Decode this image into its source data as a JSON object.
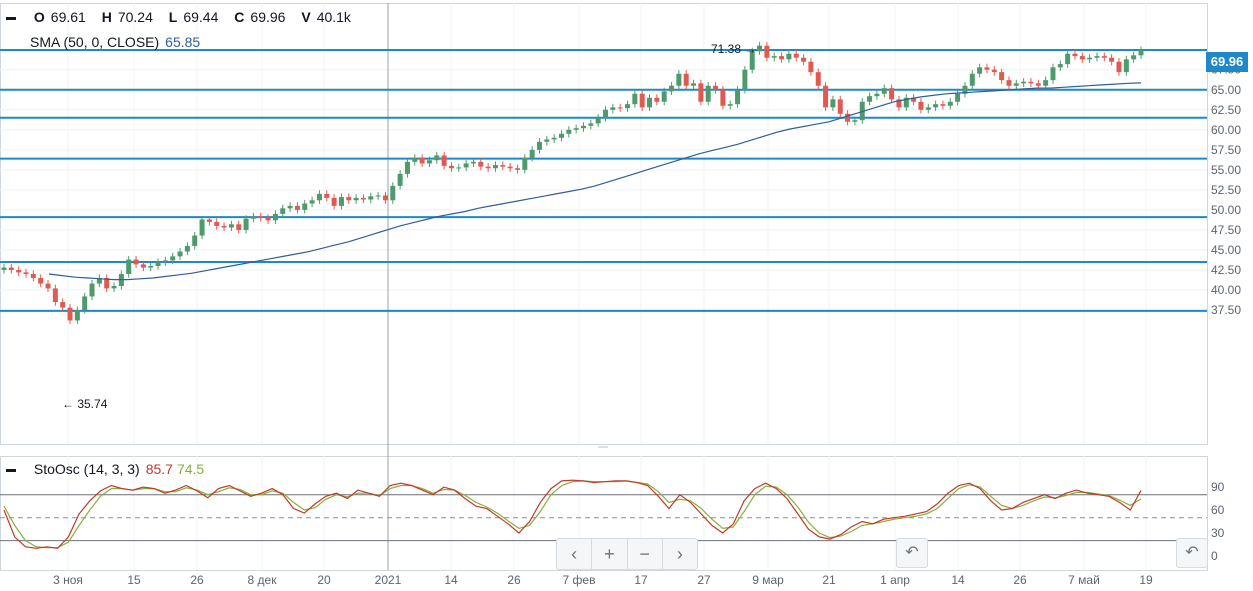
{
  "ohlc": {
    "o_label": "O",
    "o": "69.61",
    "h_label": "H",
    "h": "70.24",
    "l_label": "L",
    "l": "69.44",
    "c_label": "C",
    "c": "69.96",
    "v_label": "V",
    "v": "40.1k"
  },
  "sma_legend": {
    "label": "SMA (50, 0, CLOSE)",
    "value": "65.85"
  },
  "sto_legend": {
    "label": "StoOsc (14, 3, 3)",
    "k": "85.7",
    "d": "74.5"
  },
  "last_price_tag": "69.96",
  "annotations": {
    "high": "71.38",
    "low": "35.74"
  },
  "zoom_controls": {
    "left": "‹",
    "plus": "+",
    "minus": "−",
    "right": "›"
  },
  "reset_icon": "↶",
  "colors": {
    "up": "#4f9a6c",
    "down": "#e05a52",
    "sma": "#2f5f97",
    "hline": "#1e88c8",
    "sto_k": "#c0392b",
    "sto_d": "#8aae3c"
  },
  "chart_data": [
    {
      "type": "candlestick",
      "title": "",
      "ylim": [
        33,
        73
      ],
      "ytick_labels": [
        "37.50",
        "40.00",
        "42.50",
        "45.00",
        "47.50",
        "50.00",
        "52.50",
        "55.00",
        "57.50",
        "60.00",
        "62.50",
        "65.00",
        "67.50"
      ],
      "x_tick_labels": [
        "3 ноя",
        "15",
        "26",
        "8 дек",
        "20",
        "2021",
        "14",
        "26",
        "7 фев",
        "17",
        "27",
        "9 мар",
        "21",
        "1 апр",
        "14",
        "26",
        "7 май",
        "19"
      ],
      "horizontal_levels": [
        69.96,
        65.0,
        61.5,
        56.4,
        49.1,
        43.5,
        37.4
      ],
      "high_marker": 71.38,
      "low_marker": 35.74,
      "closes": [
        42.8,
        42.5,
        42.2,
        42.0,
        41.5,
        40.8,
        40.2,
        38.5,
        37.8,
        36.2,
        37.5,
        39.2,
        40.8,
        41.5,
        40.2,
        40.5,
        42.0,
        43.8,
        43.2,
        42.8,
        43.0,
        43.5,
        43.7,
        44.2,
        44.8,
        45.5,
        46.8,
        48.8,
        48.5,
        48.0,
        47.8,
        48.2,
        47.5,
        48.9,
        49.2,
        49.0,
        48.7,
        49.5,
        50.2,
        50.5,
        50.0,
        50.8,
        51.2,
        52.0,
        51.5,
        50.5,
        51.6,
        51.2,
        51.5,
        51.3,
        51.7,
        51.8,
        51.2,
        53.0,
        54.5,
        56.0,
        56.5,
        55.8,
        56.2,
        56.8,
        55.5,
        55.2,
        55.3,
        55.8,
        56.0,
        55.4,
        55.2,
        55.6,
        55.4,
        55.2,
        55.0,
        56.5,
        57.5,
        58.5,
        58.8,
        59.0,
        59.5,
        60.0,
        60.2,
        60.5,
        60.8,
        61.5,
        62.5,
        62.8,
        62.7,
        63.2,
        64.5,
        62.8,
        64.0,
        63.5,
        64.8,
        65.5,
        67.0,
        65.5,
        65.8,
        63.5,
        65.5,
        65.0,
        63.0,
        63.2,
        65.0,
        67.5,
        69.8,
        70.5,
        69.0,
        69.2,
        68.8,
        69.5,
        69.0,
        68.5,
        67.2,
        65.5,
        62.8,
        63.8,
        62.0,
        61.0,
        61.2,
        63.5,
        64.2,
        64.5,
        65.2,
        63.8,
        62.8,
        64.0,
        63.5,
        62.5,
        62.8,
        63.2,
        63.0,
        63.5,
        64.5,
        65.5,
        67.0,
        67.8,
        67.5,
        67.2,
        66.2,
        65.5,
        65.8,
        66.0,
        65.8,
        65.5,
        66.2,
        67.8,
        68.2,
        69.5,
        69.2,
        68.8,
        69.0,
        69.2,
        69.0,
        68.5,
        67.2,
        68.8,
        69.3,
        69.96
      ],
      "sma_50": [
        42.0,
        41.8,
        41.6,
        41.5,
        41.4,
        41.3,
        41.3,
        41.4,
        41.5,
        41.7,
        41.9,
        42.1,
        42.4,
        42.7,
        43.0,
        43.3,
        43.6,
        43.9,
        44.2,
        44.5,
        44.8,
        45.2,
        45.6,
        46.0,
        46.5,
        47.0,
        47.5,
        48.0,
        48.4,
        48.8,
        49.2,
        49.5,
        49.8,
        50.2,
        50.5,
        50.8,
        51.1,
        51.4,
        51.7,
        52.0,
        52.3,
        52.6,
        53.0,
        53.5,
        54.0,
        54.5,
        55.0,
        55.5,
        56.0,
        56.5,
        57.0,
        57.4,
        57.8,
        58.2,
        58.7,
        59.2,
        59.7,
        60.1,
        60.4,
        60.7,
        61.0,
        61.5,
        62.0,
        62.5,
        63.0,
        63.5,
        63.8,
        64.1,
        64.3,
        64.5,
        64.6,
        64.7,
        64.8,
        64.9,
        65.0,
        65.1,
        65.2,
        65.2,
        65.3,
        65.4,
        65.5,
        65.6,
        65.7,
        65.8,
        65.85
      ],
      "sto_k": [
        60,
        25,
        12,
        10,
        12,
        10,
        25,
        55,
        72,
        85,
        92,
        88,
        86,
        90,
        88,
        82,
        86,
        92,
        85,
        76,
        88,
        92,
        85,
        78,
        82,
        88,
        80,
        62,
        56,
        68,
        78,
        82,
        75,
        86,
        82,
        78,
        92,
        95,
        92,
        86,
        80,
        90,
        86,
        75,
        65,
        62,
        52,
        42,
        30,
        45,
        70,
        88,
        98,
        99,
        98,
        96,
        97,
        98,
        98,
        96,
        92,
        78,
        62,
        80,
        70,
        55,
        40,
        30,
        42,
        72,
        88,
        95,
        88,
        75,
        55,
        35,
        25,
        22,
        28,
        38,
        45,
        42,
        48,
        50,
        52,
        55,
        58,
        68,
        82,
        92,
        95,
        88,
        72,
        60,
        62,
        70,
        75,
        80,
        75,
        82,
        86,
        82,
        80,
        78,
        70,
        60,
        85.7
      ],
      "sto_d": [
        65,
        40,
        20,
        12,
        11,
        11,
        18,
        40,
        60,
        78,
        88,
        88,
        86,
        88,
        88,
        84,
        84,
        89,
        86,
        80,
        84,
        89,
        87,
        80,
        80,
        85,
        82,
        70,
        60,
        63,
        74,
        80,
        77,
        82,
        82,
        79,
        88,
        92,
        92,
        88,
        82,
        87,
        86,
        79,
        70,
        64,
        56,
        46,
        36,
        40,
        58,
        80,
        92,
        97,
        98,
        97,
        97,
        97,
        98,
        96,
        94,
        84,
        70,
        74,
        72,
        62,
        48,
        36,
        38,
        58,
        80,
        91,
        90,
        80,
        64,
        44,
        30,
        24,
        26,
        32,
        40,
        42,
        45,
        48,
        50,
        52,
        55,
        62,
        75,
        88,
        93,
        90,
        78,
        66,
        62,
        66,
        72,
        77,
        76,
        79,
        83,
        83,
        81,
        79,
        73,
        66,
        74.5
      ],
      "sto_yticks": [
        "90",
        "60",
        "30",
        "0"
      ],
      "sto_levels": [
        80,
        50,
        20
      ]
    }
  ]
}
